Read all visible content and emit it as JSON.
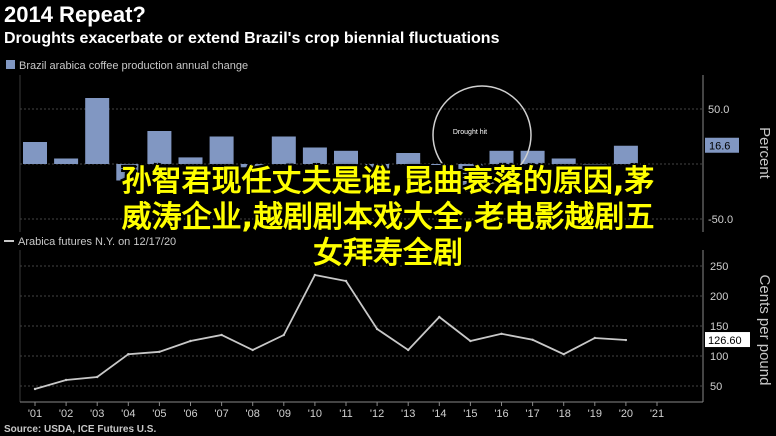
{
  "header": {
    "title": "2014 Repeat?",
    "subtitle": "Droughts exacerbate or extend Brazil's crop biennial fluctuations"
  },
  "overlay": {
    "line1": "孙智君现任丈夫是谁,昆曲衰落的原因,茅",
    "line2": "威涛企业,越剧剧本戏大全,老电影越剧五",
    "line3": "女拜寿全剧"
  },
  "source": "Source: USDA, ICE Futures U.S.",
  "colors": {
    "bar": "#8197c2",
    "line": "#c8c8c8",
    "grid": "#444444",
    "background": "#000000"
  },
  "chart_data": [
    {
      "type": "bar",
      "legend": "Brazil arabica coffee production annual change",
      "ylabel": "Percent",
      "categories": [
        "'01",
        "'02",
        "'03",
        "'04",
        "'05",
        "'06",
        "'07",
        "'08",
        "'09",
        "'10",
        "'11",
        "'12",
        "'13",
        "'14",
        "'15",
        "'16",
        "'17",
        "'18",
        "'19",
        "'20",
        "'21"
      ],
      "values": [
        20,
        5,
        60,
        -15,
        30,
        6,
        25,
        -3,
        25,
        15,
        12,
        -8,
        10,
        0,
        -25,
        12,
        12,
        5,
        0,
        16.6,
        null
      ],
      "tick_labels": [
        "50.0",
        "-50.0"
      ],
      "last_value_label": "16.6",
      "annotation": "Drought hit"
    },
    {
      "type": "line",
      "legend": "Arabica futures N.Y. on 12/17/20",
      "ylabel": "Cents per pound",
      "categories": [
        "'01",
        "'02",
        "'03",
        "'04",
        "'05",
        "'06",
        "'07",
        "'08",
        "'09",
        "'10",
        "'11",
        "'12",
        "'13",
        "'14",
        "'15",
        "'16",
        "'17",
        "'18",
        "'19",
        "'20",
        "'21"
      ],
      "values": [
        45,
        60,
        65,
        103,
        107,
        125,
        135,
        110,
        135,
        235,
        225,
        145,
        110,
        165,
        125,
        137,
        127,
        103,
        130,
        126.6,
        null
      ],
      "ylim": [
        30,
        260
      ],
      "yticks": [
        50,
        100,
        150,
        200,
        250
      ],
      "last_value_label": "126.60"
    }
  ]
}
